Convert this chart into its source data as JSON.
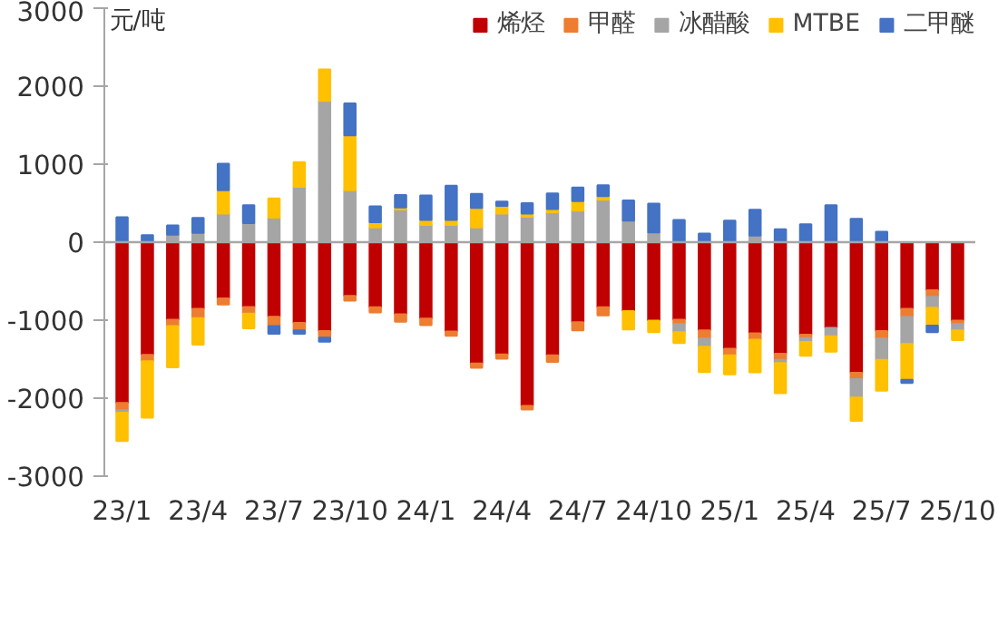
{
  "chart_data": {
    "type": "bar",
    "stacked": true,
    "ylabel": "元/吨",
    "categories": [
      "23/1",
      null,
      null,
      "23/4",
      null,
      null,
      "23/7",
      null,
      null,
      "23/10",
      null,
      null,
      "24/1",
      null,
      null,
      "24/4",
      null,
      null,
      "24/7",
      null,
      null,
      "24/10",
      null,
      null,
      "25/1",
      null,
      null,
      "25/4",
      null,
      null,
      "25/7",
      null,
      null,
      "25/10"
    ],
    "ylim": [
      -3000,
      3000
    ],
    "yticks": [
      -3000,
      -2000,
      -1000,
      0,
      1000,
      2000,
      3000
    ],
    "grid": false,
    "legend": "top",
    "ref_lines": [
      {
        "axis": "y",
        "value": 0,
        "color": "#a6a6a6"
      }
    ],
    "series": [
      {
        "name": "烯烃",
        "color": "#c00000",
        "values": [
          -2060,
          -1445,
          -995,
          -855,
          -720,
          -830,
          -955,
          -1035,
          -1140,
          -690,
          -835,
          -925,
          -980,
          -1145,
          -1555,
          -1440,
          -2100,
          -1450,
          -1025,
          -835,
          -885,
          -1005,
          -995,
          -1130,
          -1365,
          -1170,
          -1430,
          -1185,
          -1100,
          -1675,
          -1140,
          -855,
          -615,
          -1005
        ]
      },
      {
        "name": "甲醛",
        "color": "#ed7d31",
        "values": [
          -95,
          -80,
          -80,
          -120,
          -80,
          -85,
          -120,
          -95,
          -85,
          -60,
          -65,
          -95,
          -85,
          -55,
          -55,
          -55,
          -45,
          -85,
          -105,
          -105,
          null,
          null,
          -55,
          -105,
          -85,
          -80,
          -80,
          -45,
          null,
          -80,
          -95,
          -105,
          -85,
          -45
        ]
      },
      {
        "name": "冰醋酸",
        "color": "#a5a5a5",
        "values": [
          -30,
          null,
          95,
          120,
          365,
          245,
          315,
          710,
          1810,
          665,
          190,
          420,
          220,
          220,
          190,
          365,
          325,
          380,
          405,
          545,
          275,
          125,
          -105,
          -105,
          null,
          85,
          -40,
          -50,
          -105,
          -235,
          -275,
          -345,
          -140,
          -80
        ]
      },
      {
        "name": "MTBE",
        "color": "#ffc000",
        "values": [
          -365,
          -725,
          -530,
          -340,
          300,
          -190,
          245,
          315,
          405,
          705,
          65,
          25,
          65,
          65,
          250,
          100,
          40,
          45,
          120,
          45,
          -235,
          -150,
          -140,
          -325,
          -245,
          -420,
          -385,
          -175,
          -200,
          -300,
          -395,
          -460,
          -230,
          -125
        ]
      },
      {
        "name": "二甲醚",
        "color": "#4472c4",
        "values": [
          320,
          90,
          120,
          190,
          340,
          230,
          -100,
          -45,
          -50,
          410,
          205,
          160,
          315,
          440,
          180,
          55,
          135,
          200,
          175,
          140,
          260,
          370,
          285,
          110,
          275,
          330,
          165,
          230,
          475,
          300,
          135,
          -40,
          -85,
          null
        ]
      }
    ]
  }
}
